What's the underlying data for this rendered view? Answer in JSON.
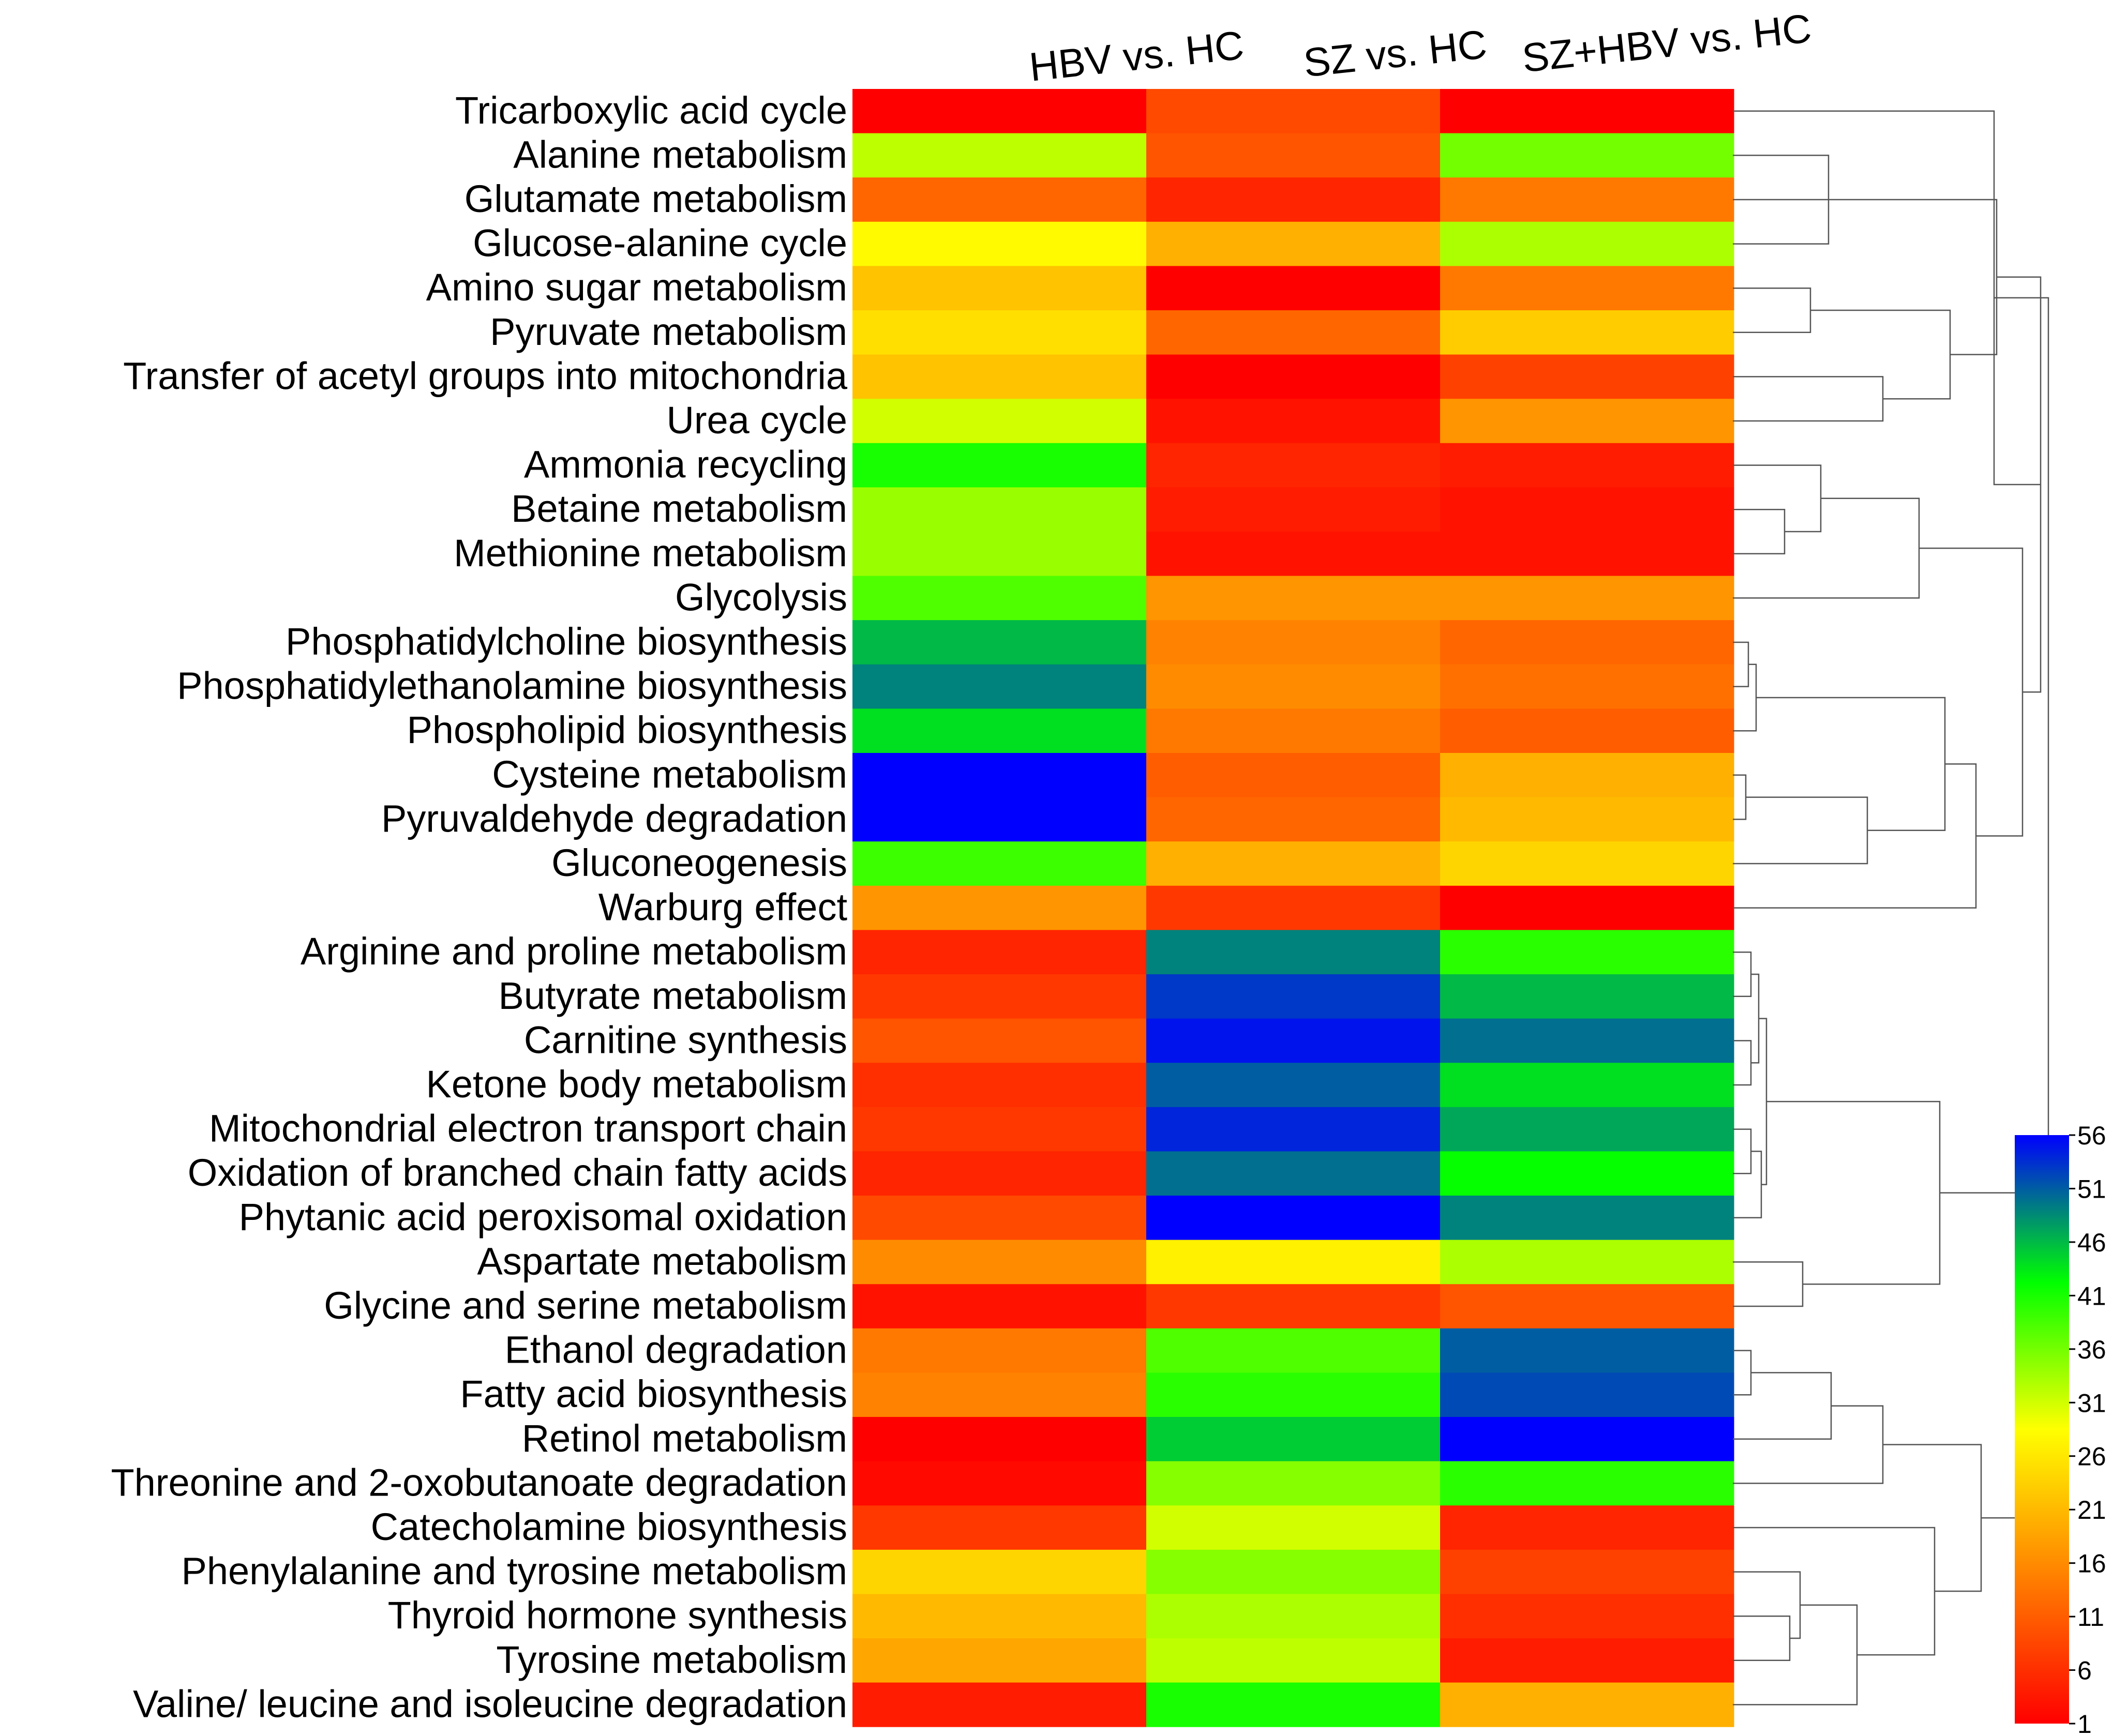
{
  "chart_data": {
    "type": "heatmap",
    "title": "",
    "columns": [
      "HBV vs. HC",
      "SZ vs. HC",
      "SZ+HBV vs. HC"
    ],
    "rows": [
      "Tricarboxylic acid cycle",
      "Alanine metabolism",
      "Glutamate metabolism",
      "Glucose-alanine cycle",
      "Amino sugar metabolism",
      "Pyruvate metabolism",
      "Transfer of acetyl groups into mitochondria",
      "Urea cycle",
      "Ammonia recycling",
      "Betaine metabolism",
      "Methionine metabolism",
      "Glycolysis",
      "Phosphatidylcholine biosynthesis",
      "Phosphatidylethanolamine biosynthesis",
      "Phospholipid biosynthesis",
      "Cysteine metabolism",
      "Pyruvaldehyde degradation",
      "Gluconeogenesis",
      "Warburg effect",
      "Arginine and proline metabolism",
      "Butyrate metabolism",
      "Carnitine synthesis",
      "Ketone body metabolism",
      "Mitochondrial electron transport chain",
      "Oxidation of branched chain fatty acids",
      "Phytanic acid peroxisomal oxidation",
      "Aspartate metabolism",
      "Glycine and serine metabolism",
      "Ethanol degradation",
      "Fatty acid biosynthesis",
      "Retinol metabolism",
      "Threonine and 2-oxobutanoate degradation",
      "Catecholamine biosynthesis",
      "Phenylalanine and tyrosine metabolism",
      "Thyroid hormone synthesis",
      "Tyrosine metabolism",
      "Valine/ leucine and isoleucine degradation"
    ],
    "values": [
      [
        1,
        9,
        1
      ],
      [
        32,
        10,
        36
      ],
      [
        12,
        5,
        14
      ],
      [
        28,
        20,
        33
      ],
      [
        22,
        1,
        14
      ],
      [
        25,
        12,
        23
      ],
      [
        22,
        1,
        8
      ],
      [
        31,
        3,
        17
      ],
      [
        41,
        5,
        4
      ],
      [
        34,
        4,
        3
      ],
      [
        34,
        3,
        3
      ],
      [
        38,
        17,
        17
      ],
      [
        46,
        15,
        12
      ],
      [
        49,
        16,
        13
      ],
      [
        44,
        14,
        11
      ],
      [
        56,
        11,
        20
      ],
      [
        56,
        12,
        21
      ],
      [
        39,
        20,
        24
      ],
      [
        17,
        7,
        1
      ],
      [
        5,
        49,
        40
      ],
      [
        7,
        53,
        46
      ],
      [
        10,
        55,
        50
      ],
      [
        6,
        51,
        44
      ],
      [
        7,
        54,
        47
      ],
      [
        5,
        50,
        42
      ],
      [
        9,
        56,
        49
      ],
      [
        16,
        27,
        33
      ],
      [
        3,
        7,
        10
      ],
      [
        14,
        38,
        51
      ],
      [
        15,
        40,
        52
      ],
      [
        1,
        45,
        56
      ],
      [
        2,
        35,
        40
      ],
      [
        7,
        31,
        5
      ],
      [
        24,
        35,
        8
      ],
      [
        21,
        33,
        6
      ],
      [
        19,
        32,
        4
      ],
      [
        4,
        41,
        20
      ]
    ],
    "colorbar": {
      "min": 1,
      "max": 56,
      "ticks": [
        56,
        51,
        46,
        41,
        36,
        31,
        26,
        21,
        16,
        11,
        6,
        1
      ],
      "colors": [
        "#ff0000",
        "#ff8000",
        "#ffff00",
        "#00ff00",
        "#0000ff"
      ]
    },
    "dendrogram": "right",
    "legend_position": "bottom-right"
  }
}
